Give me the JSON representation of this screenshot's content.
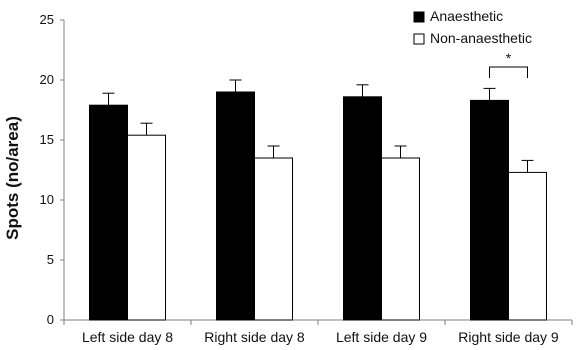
{
  "chart_data": {
    "type": "bar",
    "title": "",
    "xlabel": "",
    "ylabel": "Spots (no/area)",
    "ylim": [
      0,
      25
    ],
    "yticks": [
      0,
      5,
      10,
      15,
      20,
      25
    ],
    "categories": [
      "Left side day 8",
      "Right side day 8",
      "Left side day 9",
      "Right side day 9"
    ],
    "series": [
      {
        "name": "Anaesthetic",
        "values": [
          17.9,
          19.0,
          18.6,
          18.3
        ],
        "errors": [
          1.0,
          1.0,
          1.0,
          1.0
        ],
        "fill": "#000000"
      },
      {
        "name": "Non-anaesthetic",
        "values": [
          15.4,
          13.5,
          13.5,
          12.3
        ],
        "errors": [
          1.0,
          1.0,
          1.0,
          1.0
        ],
        "fill": "#ffffff"
      }
    ],
    "legend_position": "top-right",
    "grid": false,
    "annotations": [
      {
        "text": "*",
        "category": "Right side day 9"
      }
    ]
  }
}
